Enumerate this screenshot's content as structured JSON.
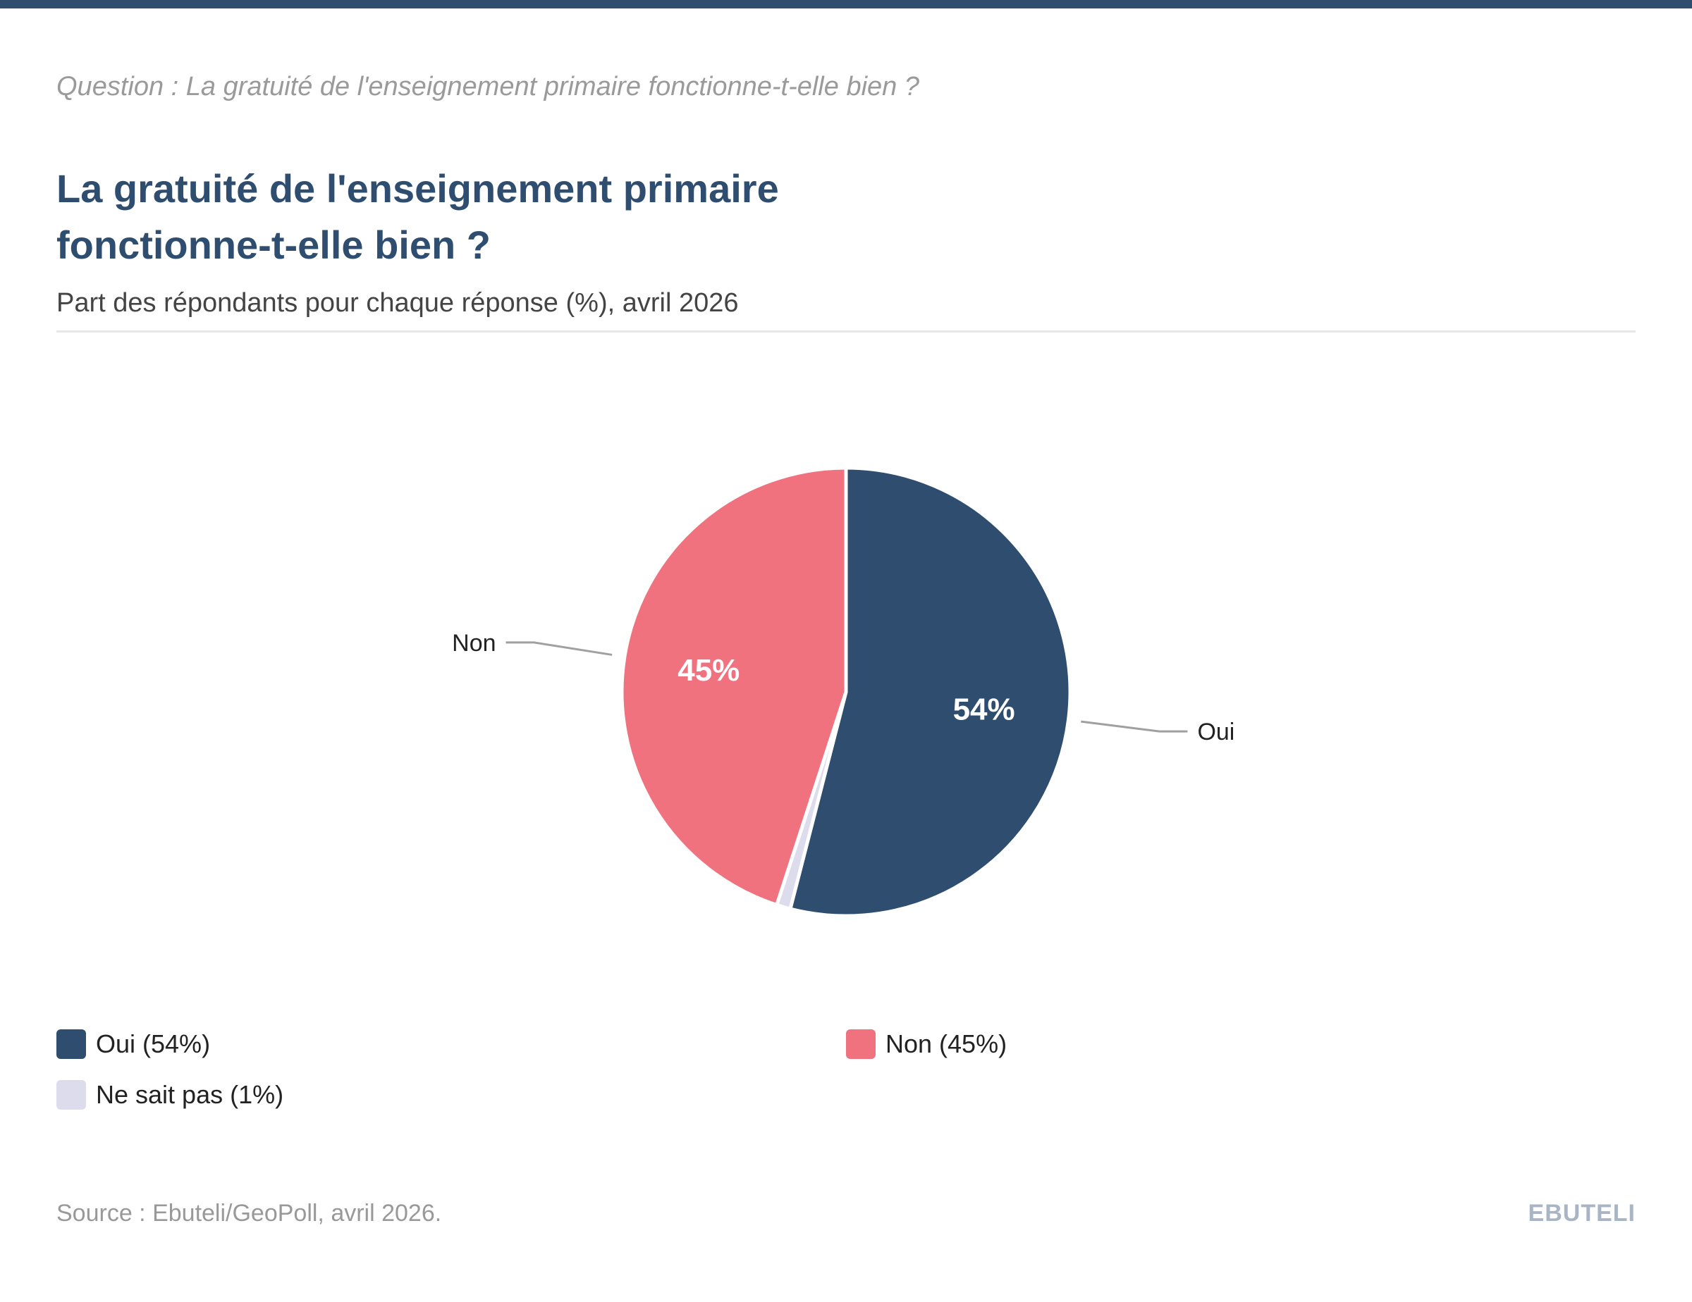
{
  "question": "Question : La gratuité de l'enseignement primaire fonctionne-t-elle bien ?",
  "title": "La gratuité de l'enseignement primaire fonctionne-t-elle bien ?",
  "subtitle": "Part des répondants pour chaque réponse (%), avril 2026",
  "chart_data": {
    "type": "pie",
    "slices": [
      {
        "label": "Oui",
        "value": 54,
        "value_label": "54%",
        "outside_label": "Oui",
        "legend": "Oui (54%)",
        "color": "#2f4e6f"
      },
      {
        "label": "Ne sait pas",
        "value": 1,
        "value_label": "",
        "outside_label": "",
        "legend": "Ne sait pas (1%)",
        "color": "#dcdcec"
      },
      {
        "label": "Non",
        "value": 45,
        "value_label": "45%",
        "outside_label": "Non",
        "legend": "Non (45%)",
        "color": "#f0727e"
      }
    ],
    "legend_position": "bottom"
  },
  "legend": {
    "oui": "Oui (54%)",
    "non": "Non (45%)",
    "nsp": "Ne sait pas (1%)"
  },
  "colors": {
    "primary": "#2f4e6f",
    "accent": "#f0727e",
    "neutral": "#dcdcec"
  },
  "source": "Source : Ebuteli/GeoPoll, avril 2026.",
  "brand": "EBUTELI"
}
